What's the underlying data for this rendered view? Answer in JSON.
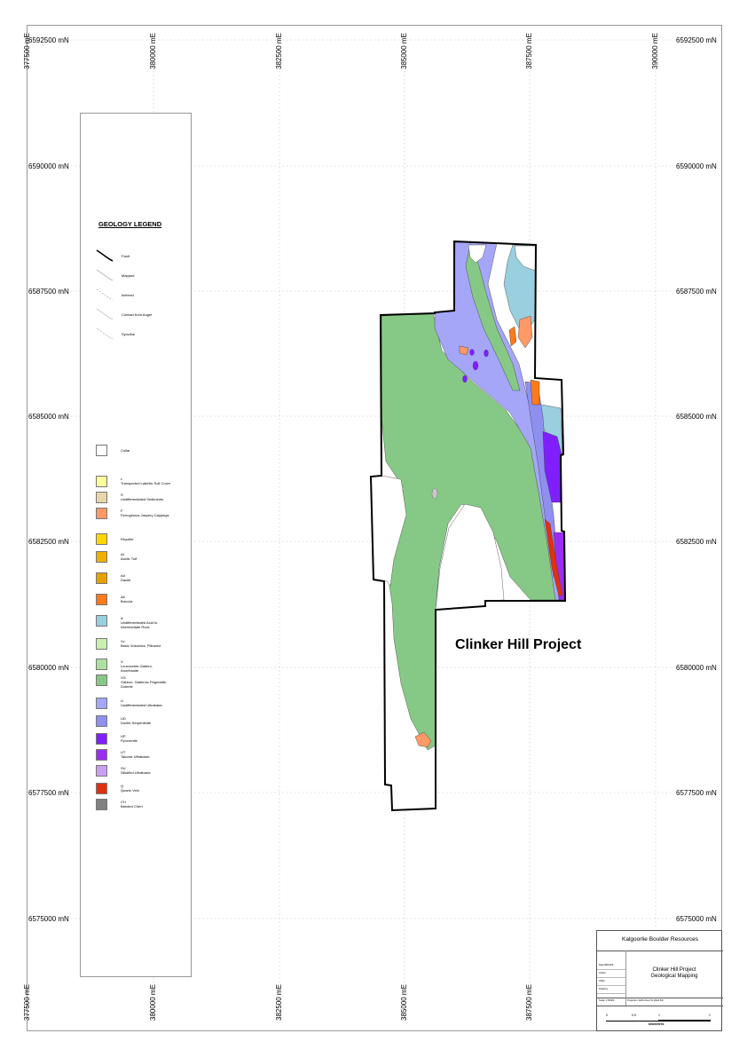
{
  "map": {
    "northing_labels": [
      "6592500 mN",
      "6590000 mN",
      "6587500 mN",
      "6585000 mN",
      "6582500 mN",
      "6580000 mN",
      "6577500 mN",
      "6575000 mN"
    ],
    "easting_labels": [
      "380000 mE",
      "382500 mE",
      "385000 mE",
      "387500 mE",
      "390000 mE"
    ],
    "corner_label_top": "377500 mE",
    "corner_label_bottom": "377500 mE",
    "project_label": "Clinker Hill Project"
  },
  "legend": {
    "title": "GEOLOGY LEGEND",
    "line_items": [
      {
        "label": "Fault",
        "style": "fault"
      },
      {
        "label": "Mapped",
        "style": "mapped"
      },
      {
        "label": "Inferred",
        "style": "inferred"
      },
      {
        "label": "Contact from Auger",
        "style": "auger"
      },
      {
        "label": "Syncline",
        "style": "syncline"
      }
    ],
    "units": [
      {
        "code": "",
        "name": "Collar",
        "color": "#ffffff"
      },
      {
        "code": "L",
        "name": "Transported Lateritic Soil Cover",
        "color": "#ffff99"
      },
      {
        "code": "S",
        "name": "Undifferentiated Sediments",
        "color": "#e8d5a8"
      },
      {
        "code": "F",
        "name": "Ferruginous Jaspery Cappings",
        "color": "#ff9966"
      },
      {
        "code": "",
        "name": "Rhyolite",
        "color": "#ffd700"
      },
      {
        "code": "At",
        "name": "Acidic Tuff",
        "color": "#f0b000"
      },
      {
        "code": "Ad",
        "name": "Dacite",
        "color": "#e6a000"
      },
      {
        "code": "Ab",
        "name": "Breccia",
        "color": "#ff7a1a"
      },
      {
        "code": "A",
        "name": "Undifferentiated Acid to|Intermediate Rock",
        "color": "#99cfdf"
      },
      {
        "code": "Vv",
        "name": "Basic Volcanics, Pillowed",
        "color": "#c8f0b0"
      },
      {
        "code": "X",
        "name": "Leucocratic Gabbro,|Anorthosite",
        "color": "#aee0a0"
      },
      {
        "code": "XG",
        "name": "Gabbro, Gabbroic Pegmatite,|Dolerite",
        "color": "#86c986"
      },
      {
        "code": "U",
        "name": "Undifferentiated Ultrabasic",
        "color": "#a6a6f8"
      },
      {
        "code": "UD",
        "name": "Dunite Serpentinite",
        "color": "#8f8ff0"
      },
      {
        "code": "UP",
        "name": "Pyroxenite",
        "color": "#7f1fff"
      },
      {
        "code": "UT",
        "name": "Talcose Ultrabasic",
        "color": "#9b2df0"
      },
      {
        "code": "SU",
        "name": "Silicified Ultrabasic",
        "color": "#c9a0f0"
      },
      {
        "code": "Q",
        "name": "Quartz Vein",
        "color": "#e03010"
      },
      {
        "code": "CH",
        "name": "Banded Chert",
        "color": "#808080"
      }
    ]
  },
  "title_block": {
    "company": "Kalgoorlie Boulder Resources",
    "project_line1": "Clinker Hill Project",
    "project_line2": "Geological Mapping",
    "info_rows": [
      "Date:08/04/06",
      "Author:",
      "Office:",
      "Drawing:",
      "Scale: 1:50000"
    ],
    "projection": "Projection: AMG Zone 51 (AGD 84)",
    "scale_ticks": [
      "0",
      "0.5",
      "1",
      "2"
    ],
    "scale_unit": "kilometres"
  }
}
